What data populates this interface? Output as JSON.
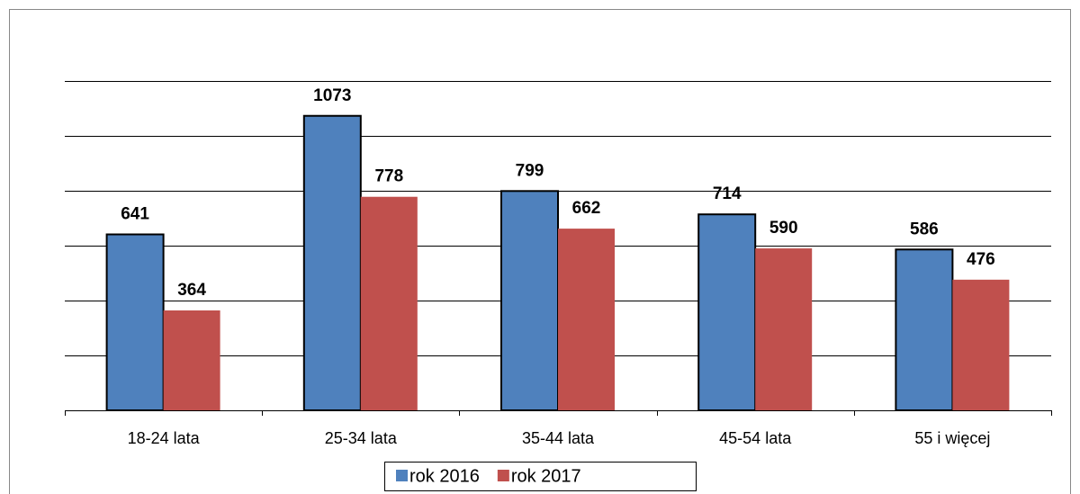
{
  "chart_data": {
    "type": "bar",
    "categories": [
      "18-24 lata",
      "25-34 lata",
      "35-44 lata",
      "45-54 lata",
      "55 i więcej"
    ],
    "series": [
      {
        "name": "rok 2016",
        "color": "#4f81bd",
        "values": [
          641,
          1073,
          799,
          714,
          586
        ]
      },
      {
        "name": "rok 2017",
        "color": "#c0504d",
        "values": [
          364,
          778,
          662,
          590,
          476
        ]
      }
    ],
    "ylim": [
      0,
      1200
    ],
    "yticks": [
      0,
      200,
      400,
      600,
      800,
      1000,
      1200
    ],
    "grid": true
  }
}
